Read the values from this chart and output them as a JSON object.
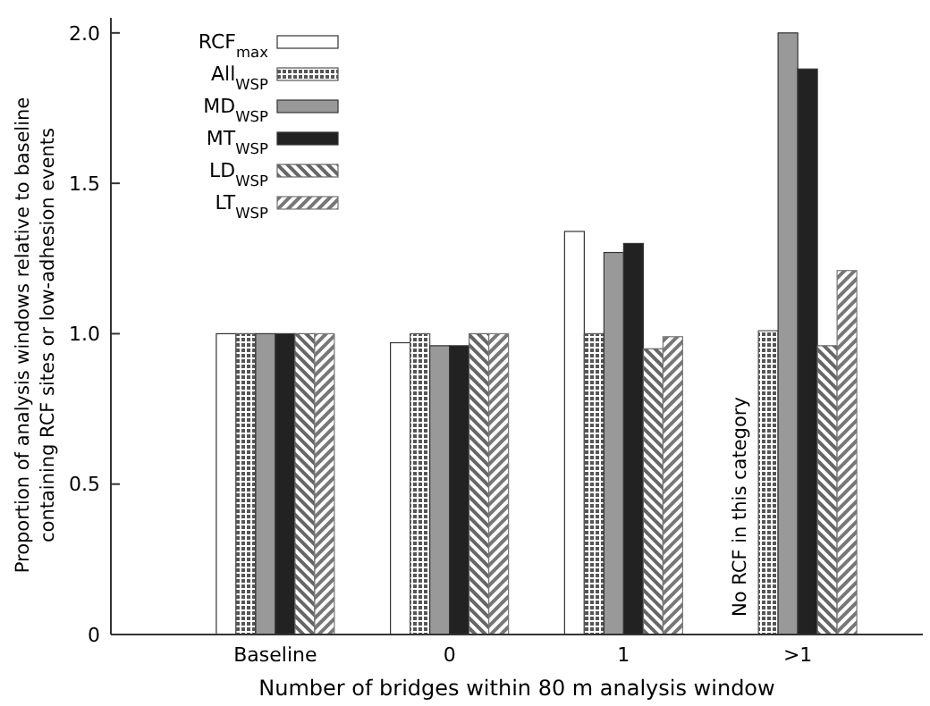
{
  "chart_data": {
    "type": "bar",
    "xlabel": "Number of bridges within 80 m analysis window",
    "ylabel": "Proportion of analysis windows relative to baseline containing RCF sites or low-adhesion events",
    "categories": [
      "Baseline",
      "0",
      "1",
      ">1"
    ],
    "series": [
      {
        "name": "RCF$_{max}$",
        "color": "#ffffff",
        "values": [
          1.0,
          0.97,
          1.34,
          null
        ]
      },
      {
        "name": "All$_{WSP}$",
        "color": "#555555",
        "values": [
          1.0,
          1.0,
          1.0,
          1.01
        ]
      },
      {
        "name": "MD$_{WSP}$",
        "color": "#999999",
        "values": [
          1.0,
          0.96,
          1.27,
          2.0
        ]
      },
      {
        "name": "MT$_{WSP}$",
        "color": "#222222",
        "values": [
          1.0,
          0.96,
          1.3,
          1.88
        ]
      },
      {
        "name": "LD$_{WSP}$",
        "color": "#666666",
        "values": [
          1.0,
          1.0,
          0.95,
          0.96
        ]
      },
      {
        "name": "LT$_{WSP}$",
        "color": "#777777",
        "values": [
          1.0,
          1.0,
          0.99,
          1.21
        ]
      }
    ],
    "ylim": [
      0,
      2.05
    ],
    "yticks": [
      0,
      0.5,
      {
        "value": 1,
        "label": "1.0"
      },
      1.5,
      {
        "value": 2,
        "label": "2.0"
      }
    ],
    "annotations": [
      {
        "text": "No RCF in this category",
        "x": ">1"
      }
    ],
    "legend": "top left",
    "grid": false
  }
}
